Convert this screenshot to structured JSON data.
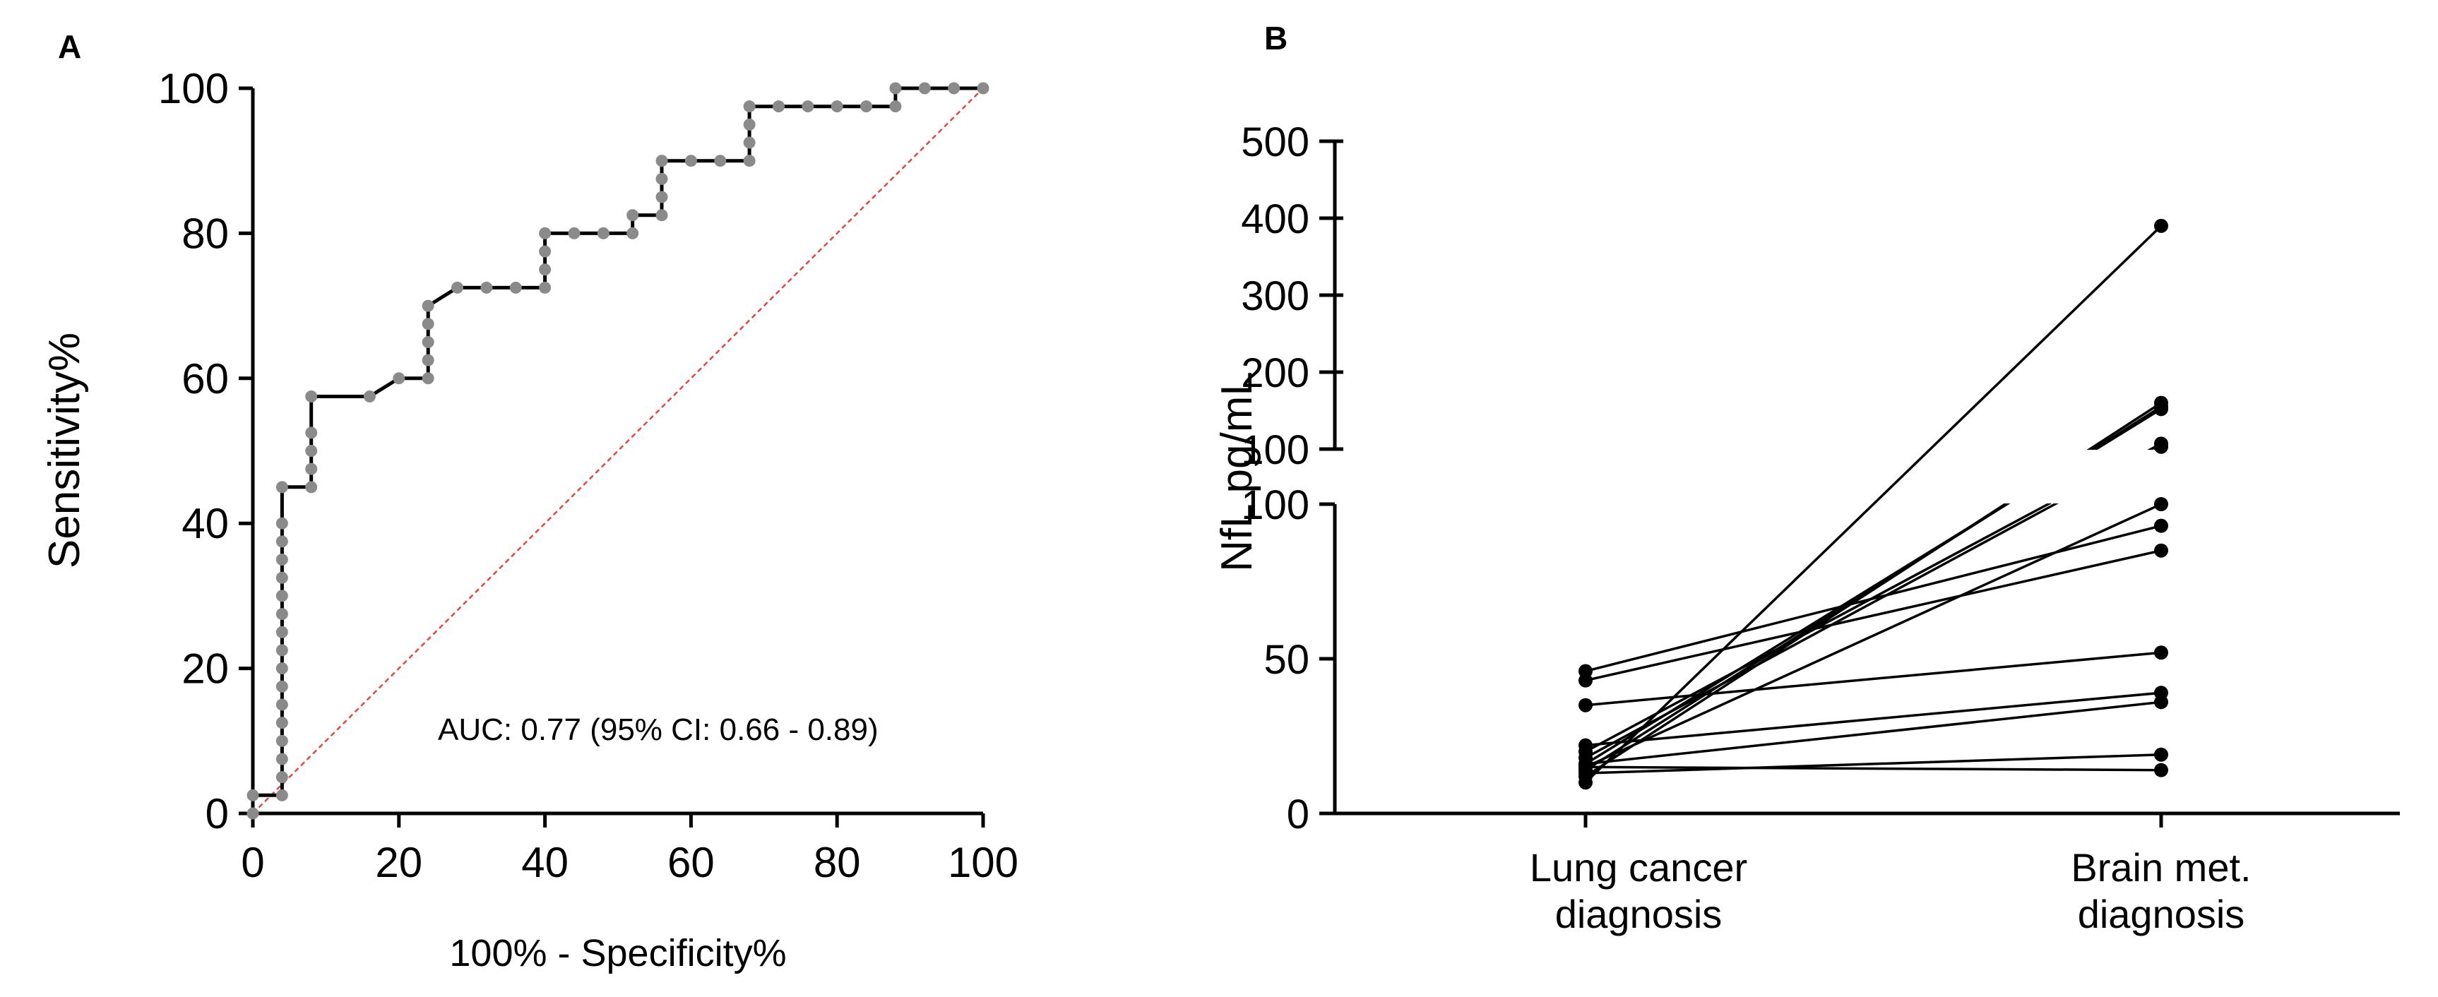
{
  "chart_data": [
    {
      "panel": "A",
      "type": "line",
      "subtype": "roc-curve",
      "title": "",
      "xlabel": "100% - Specificity%",
      "ylabel": "Sensitivity%",
      "xlim": [
        0,
        100
      ],
      "ylim": [
        0,
        100
      ],
      "xticks": [
        "0",
        "20",
        "40",
        "60",
        "80",
        "100"
      ],
      "yticks": [
        "0",
        "20",
        "40",
        "60",
        "80",
        "100"
      ],
      "annotation": "AUC: 0.77 (95% CI: 0.66 - 0.89)",
      "colors": {
        "curve": "#000000",
        "points": "#8a8a8a",
        "reference": "#e8453c"
      },
      "reference_line": {
        "x": [
          0,
          100
        ],
        "y": [
          0,
          100
        ]
      },
      "series": [
        {
          "name": "ROC",
          "x": [
            0,
            0,
            4,
            4,
            4,
            4,
            4,
            4,
            4,
            4,
            4,
            4,
            4,
            4,
            4,
            4,
            4,
            4,
            4,
            8,
            8,
            8,
            8,
            8,
            16,
            20,
            24,
            24,
            24,
            24,
            24,
            28,
            32,
            36,
            40,
            40,
            40,
            40,
            44,
            48,
            52,
            52,
            56,
            56,
            56,
            56,
            60,
            64,
            68,
            68,
            68,
            68,
            72,
            76,
            80,
            84,
            88,
            88,
            92,
            96,
            100
          ],
          "y": [
            0,
            2.5,
            2.5,
            5,
            7.5,
            10,
            12.5,
            15,
            17.5,
            20,
            22.5,
            25,
            27.5,
            30,
            32.5,
            35,
            37.5,
            40,
            45,
            45,
            47.5,
            50,
            52.5,
            57.5,
            57.5,
            60,
            60,
            62.5,
            65,
            67.5,
            70,
            72.5,
            72.5,
            72.5,
            72.5,
            75,
            77.5,
            80,
            80,
            80,
            80,
            82.5,
            82.5,
            85,
            87.5,
            90,
            90,
            90,
            90,
            92.5,
            95,
            97.5,
            97.5,
            97.5,
            97.5,
            97.5,
            97.5,
            100,
            100,
            100,
            100
          ]
        }
      ]
    },
    {
      "panel": "B",
      "type": "line",
      "subtype": "paired-before-after",
      "title": "",
      "xlabel": "",
      "ylabel": "NfL pg/mL",
      "categories": [
        "Lung cancer\ndiagnosis",
        "Brain met.\ndiagnosis"
      ],
      "y_axis_broken": true,
      "lower_segment": {
        "ylim": [
          0,
          100
        ],
        "yticks": [
          "0",
          "50",
          "100"
        ]
      },
      "upper_segment": {
        "ylim": [
          100,
          500
        ],
        "yticks": [
          "100",
          "200",
          "300",
          "400",
          "500"
        ]
      },
      "color": "#000000",
      "pairs": [
        [
          10,
          390
        ],
        [
          12,
          160
        ],
        [
          14,
          155
        ],
        [
          16,
          152
        ],
        [
          20,
          107
        ],
        [
          18,
          103
        ],
        [
          15,
          100
        ],
        [
          46,
          93
        ],
        [
          43,
          85
        ],
        [
          35,
          52
        ],
        [
          22,
          39
        ],
        [
          16,
          36
        ],
        [
          13,
          19
        ],
        [
          15,
          14
        ]
      ]
    }
  ]
}
